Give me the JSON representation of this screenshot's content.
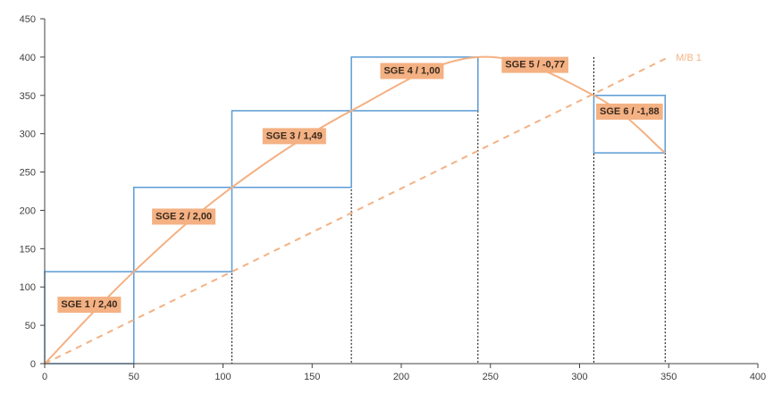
{
  "chart_data": {
    "type": "line",
    "title": "",
    "xlabel": "",
    "ylabel": "",
    "xlim": [
      0,
      400
    ],
    "ylim": [
      0,
      450
    ],
    "x_ticks": [
      0,
      50,
      100,
      150,
      200,
      250,
      300,
      350,
      400
    ],
    "y_ticks": [
      0,
      50,
      100,
      150,
      200,
      250,
      300,
      350,
      400,
      450
    ],
    "grid": false,
    "colors": {
      "rect": "#5b9bd5",
      "curve": "#f4b183",
      "label_bg": "#f4b183",
      "axis": "#404040",
      "guide": "#000000"
    },
    "series": [
      {
        "kind": "curve",
        "points": [
          [
            0,
            0
          ],
          [
            50,
            120
          ],
          [
            105,
            230
          ],
          [
            172,
            330
          ],
          [
            243,
            400
          ],
          [
            308,
            350
          ],
          [
            348,
            275
          ]
        ]
      },
      {
        "kind": "reference-dashed",
        "name": "M/B 1",
        "points": [
          [
            0,
            0
          ],
          [
            350,
            400
          ]
        ]
      }
    ],
    "segments": [
      {
        "label": "SGE 1 / 2,40",
        "x0": 0,
        "x1": 50,
        "y": 120,
        "label_x": 25,
        "label_y": 78
      },
      {
        "label": "SGE 2 / 2,00",
        "x0": 50,
        "x1": 105,
        "y": 230,
        "label_x": 78,
        "label_y": 193
      },
      {
        "label": "SGE 3 / 1,49",
        "x0": 105,
        "x1": 172,
        "y": 330,
        "label_x": 140,
        "label_y": 298
      },
      {
        "label": "SGE 4 / 1,00",
        "x0": 172,
        "x1": 243,
        "y": 400,
        "label_x": 206,
        "label_y": 383
      },
      {
        "label": "SGE 5 / -0,77",
        "x0": 243,
        "x1": 308,
        "y": 400,
        "label_x": 275,
        "label_y": 391
      },
      {
        "label": "SGE 6 / -1,88",
        "x0": 308,
        "x1": 348,
        "y": 350,
        "top": 350,
        "bottom": 275,
        "label_x": 328,
        "label_y": 330
      }
    ]
  }
}
